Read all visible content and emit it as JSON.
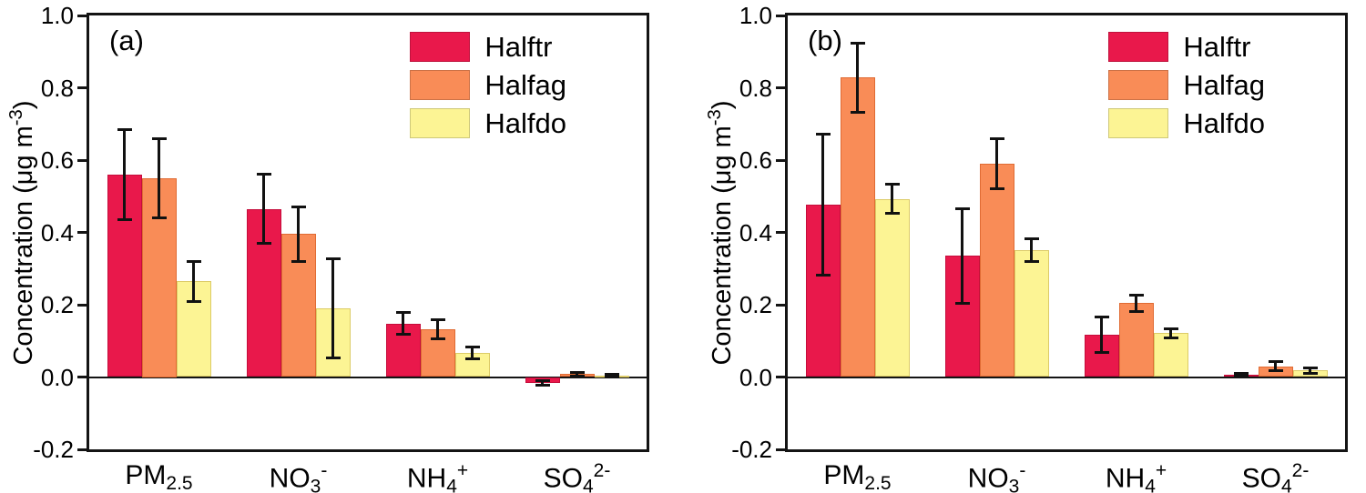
{
  "figure": {
    "background": "#ffffff",
    "axis_color": "#141414",
    "error_bar_color": "#111111",
    "series_colors": {
      "Halftr": "#E9184B",
      "Halfag": "#F98C57",
      "Halfdo": "#FCF494"
    },
    "series_border_colors": {
      "Halftr": "#C50D3B",
      "Halfag": "#E06B33",
      "Halfdo": "#DCCB67"
    }
  },
  "chart_data": [
    {
      "id": "a",
      "type": "bar",
      "panel_label": "(a)",
      "ylabel_parts": {
        "prefix": "Concentration (μg m",
        "sup": "-3",
        "suffix": ")"
      },
      "ylim": [
        -0.2,
        1.0
      ],
      "grid": false,
      "legend_position": "top-right",
      "yticks": [
        {
          "label": "1.0",
          "value": 1.0
        },
        {
          "label": "0.8",
          "value": 0.8
        },
        {
          "label": "0.6",
          "value": 0.6
        },
        {
          "label": "0.4",
          "value": 0.4
        },
        {
          "label": "0.2",
          "value": 0.2
        },
        {
          "label": "0.0",
          "value": 0.0
        },
        {
          "label": "-0.2",
          "value": -0.2
        }
      ],
      "categories": [
        {
          "base": "PM",
          "sub": "2.5",
          "sup": ""
        },
        {
          "base": "NO",
          "sub": "3",
          "sup": "-"
        },
        {
          "base": "NH",
          "sub": "4",
          "sup": "+"
        },
        {
          "base": "SO",
          "sub": "4",
          "sup": "2-"
        }
      ],
      "series": [
        {
          "name": "Halftr",
          "values": [
            0.56,
            0.465,
            0.148,
            -0.016
          ],
          "errors": [
            0.125,
            0.095,
            0.031,
            0.006
          ]
        },
        {
          "name": "Halfag",
          "values": [
            0.55,
            0.395,
            0.132,
            0.008
          ],
          "errors": [
            0.11,
            0.075,
            0.027,
            0.005
          ]
        },
        {
          "name": "Halfdo",
          "values": [
            0.265,
            0.19,
            0.067,
            0.004
          ],
          "errors": [
            0.055,
            0.137,
            0.016,
            0.003
          ]
        }
      ]
    },
    {
      "id": "b",
      "type": "bar",
      "panel_label": "(b)",
      "ylabel_parts": {
        "prefix": "Concentration (μg m",
        "sup": "-3",
        "suffix": ")"
      },
      "ylim": [
        -0.2,
        1.0
      ],
      "grid": false,
      "legend_position": "top-right",
      "yticks": [
        {
          "label": "1.0",
          "value": 1.0
        },
        {
          "label": "0.8",
          "value": 0.8
        },
        {
          "label": "0.6",
          "value": 0.6
        },
        {
          "label": "0.4",
          "value": 0.4
        },
        {
          "label": "0.2",
          "value": 0.2
        },
        {
          "label": "0.0",
          "value": 0.0
        },
        {
          "label": "-0.2",
          "value": -0.2
        }
      ],
      "categories": [
        {
          "base": "PM",
          "sub": "2.5",
          "sup": ""
        },
        {
          "base": "NO",
          "sub": "3",
          "sup": "-"
        },
        {
          "base": "NH",
          "sub": "4",
          "sup": "+"
        },
        {
          "base": "SO",
          "sub": "4",
          "sup": "2-"
        }
      ],
      "series": [
        {
          "name": "Halftr",
          "values": [
            0.477,
            0.335,
            0.118,
            0.006
          ],
          "errors": [
            0.195,
            0.13,
            0.049,
            0.004
          ]
        },
        {
          "name": "Halfag",
          "values": [
            0.828,
            0.59,
            0.204,
            0.03
          ],
          "errors": [
            0.095,
            0.07,
            0.023,
            0.012
          ]
        },
        {
          "name": "Halfdo",
          "values": [
            0.493,
            0.351,
            0.121,
            0.018
          ],
          "errors": [
            0.04,
            0.032,
            0.013,
            0.007
          ]
        }
      ]
    }
  ]
}
